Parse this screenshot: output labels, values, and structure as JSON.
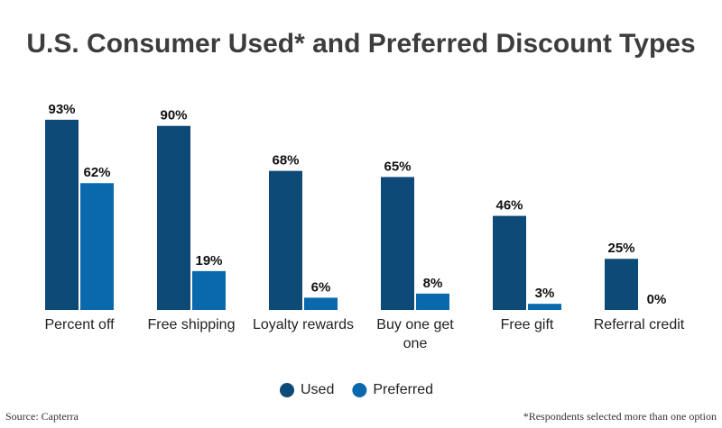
{
  "chart_data": {
    "type": "grouped-bar",
    "title": "U.S. Consumer Used* and Preferred Discount Types",
    "categories": [
      "Percent off",
      "Free shipping",
      "Loyalty rewards",
      "Buy one get one",
      "Free gift",
      "Referral credit"
    ],
    "series": [
      {
        "name": "Used",
        "color": "#0d4a78",
        "values": [
          93,
          90,
          68,
          65,
          46,
          25
        ],
        "value_labels": [
          "93%",
          "90%",
          "68%",
          "65%",
          "46%",
          "25%"
        ]
      },
      {
        "name": "Preferred",
        "color": "#0a68ac",
        "values": [
          62,
          19,
          6,
          8,
          3,
          0
        ],
        "value_labels": [
          "62%",
          "19%",
          "6%",
          "8%",
          "3%",
          "0%"
        ]
      }
    ],
    "ylim": [
      0,
      100
    ],
    "source": "Source: Capterra",
    "footnote": "*Respondents selected more than one option"
  }
}
